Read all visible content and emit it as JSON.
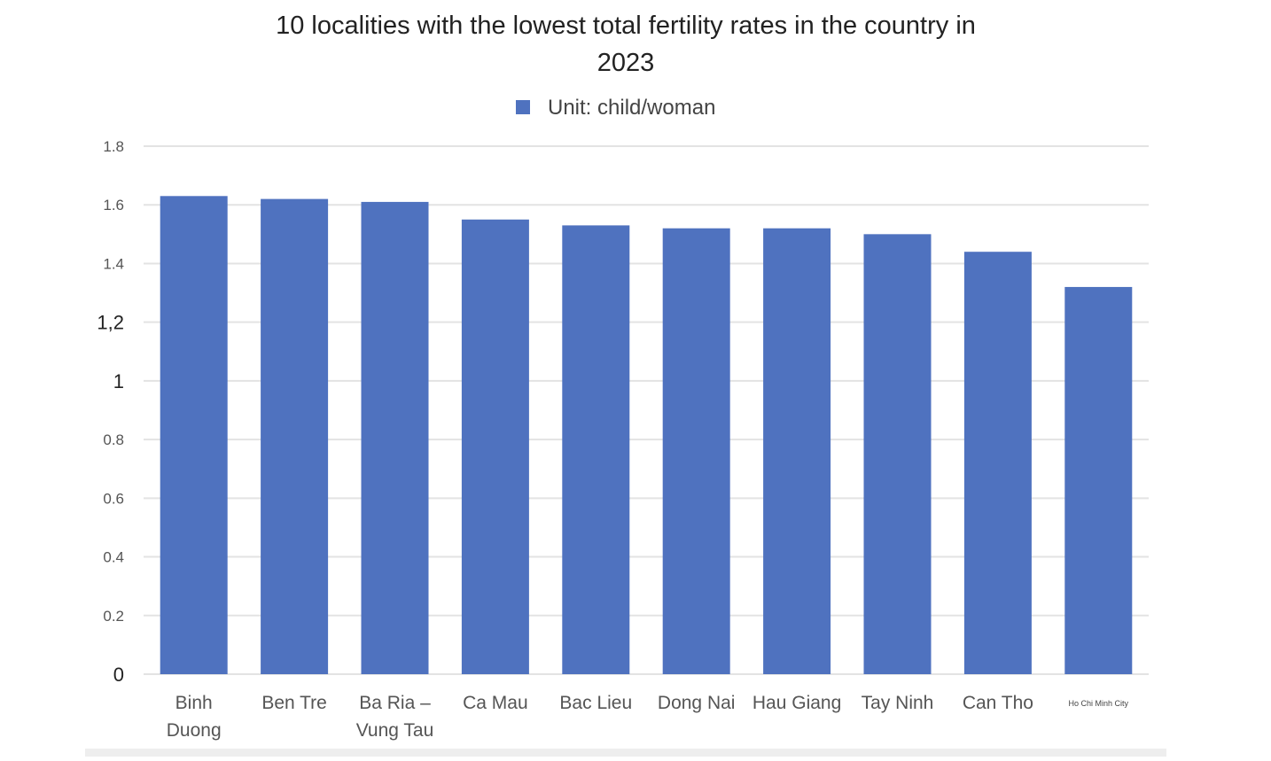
{
  "chart_data": {
    "type": "bar",
    "title_lines": [
      "10 localities with the lowest total fertility rates in the country in",
      "2023"
    ],
    "legend": [
      {
        "label": "Unit: child/woman",
        "color": "#4f72bf"
      }
    ],
    "categories": [
      [
        "Binh",
        "Duong"
      ],
      [
        "Ben Tre"
      ],
      [
        "Ba Ria –",
        "Vung Tau"
      ],
      [
        "Ca Mau"
      ],
      [
        "Bac Lieu"
      ],
      [
        "Dong Nai"
      ],
      [
        "Hau Giang"
      ],
      [
        "Tay Ninh"
      ],
      [
        "Can Tho"
      ],
      [
        "Ho Chi Minh City"
      ]
    ],
    "values": [
      1.63,
      1.62,
      1.61,
      1.55,
      1.53,
      1.52,
      1.52,
      1.5,
      1.44,
      1.32
    ],
    "yticks": [
      "0",
      "0.2",
      "0.4",
      "0.6",
      "0.8",
      "1",
      "1,2",
      "1.4",
      "1.6",
      "1.8"
    ],
    "ylim": [
      0,
      1.8
    ],
    "grid": true,
    "bar_color": "#4f72bf"
  }
}
